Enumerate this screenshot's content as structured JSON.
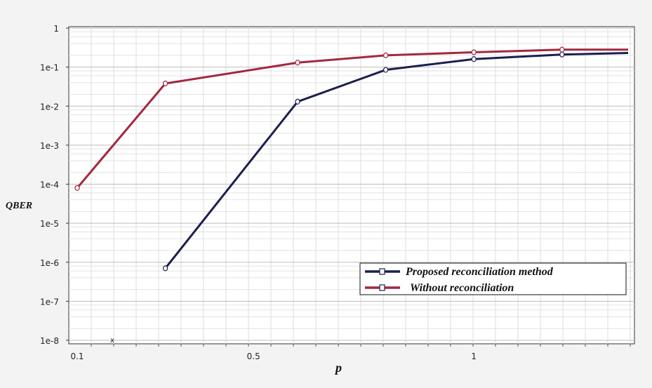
{
  "chart_data": {
    "type": "line",
    "title": "",
    "xlabel": "p",
    "ylabel": "QBER",
    "y_scale": "log",
    "xlim": [
      0.0,
      1.35
    ],
    "ylim": [
      1e-08,
      1
    ],
    "grid": true,
    "legend_position": "bottom-right",
    "x_tick_labels": [
      {
        "value": 0.1,
        "label": "0.1"
      },
      {
        "value": 0.5,
        "label": "0.5"
      },
      {
        "value": 1.0,
        "label": "1"
      }
    ],
    "y_tick_labels": [
      {
        "value": 1,
        "label": "1"
      },
      {
        "value": 0.1,
        "label": "1e-1"
      },
      {
        "value": 0.01,
        "label": "1e-2"
      },
      {
        "value": 0.001,
        "label": "1e-3"
      },
      {
        "value": 0.0001,
        "label": "1e-4"
      },
      {
        "value": 1e-05,
        "label": "1e-5"
      },
      {
        "value": 1e-06,
        "label": "1e-6"
      },
      {
        "value": 1e-07,
        "label": "1e-7"
      },
      {
        "value": 1e-08,
        "label": "1e-8"
      }
    ],
    "series": [
      {
        "name": "Proposed reconciliation method",
        "color": "#1c1f4f",
        "x": [
          0.3,
          0.6,
          0.8,
          1.0,
          1.2,
          1.35
        ],
        "y": [
          7e-07,
          0.013,
          0.085,
          0.16,
          0.21,
          0.23
        ]
      },
      {
        "name": "Without reconciliation",
        "color": "#a3283f",
        "x": [
          0.1,
          0.3,
          0.6,
          0.8,
          1.0,
          1.2,
          1.35
        ],
        "y": [
          8e-05,
          0.038,
          0.13,
          0.2,
          0.24,
          0.28,
          0.28
        ]
      }
    ],
    "annotations": [
      {
        "text": "x",
        "x": 0.1,
        "y": 1e-08,
        "color": "#1c1f4f"
      }
    ]
  }
}
